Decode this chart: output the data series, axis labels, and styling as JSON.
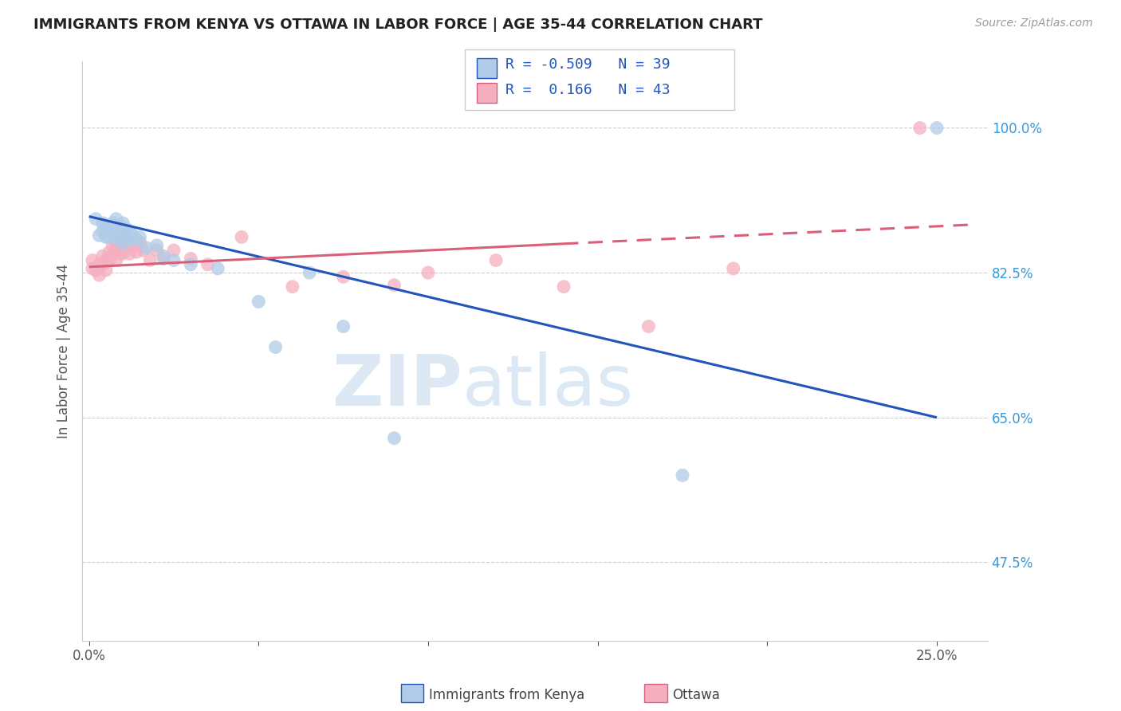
{
  "title": "IMMIGRANTS FROM KENYA VS OTTAWA IN LABOR FORCE | AGE 35-44 CORRELATION CHART",
  "source": "Source: ZipAtlas.com",
  "ylabel": "In Labor Force | Age 35-44",
  "y_tick_labels_right": [
    "100.0%",
    "82.5%",
    "65.0%",
    "47.5%"
  ],
  "y_tick_values_right": [
    1.0,
    0.825,
    0.65,
    0.475
  ],
  "xlim": [
    -0.002,
    0.265
  ],
  "ylim": [
    0.38,
    1.08
  ],
  "legend_r_kenya": "-0.509",
  "legend_n_kenya": "39",
  "legend_r_ottawa": " 0.166",
  "legend_n_ottawa": "43",
  "color_kenya": "#b0cce8",
  "color_ottawa": "#f5afc0",
  "line_color_kenya": "#2255bb",
  "line_color_ottawa": "#d9607a",
  "watermark_zip": "ZIP",
  "watermark_atlas": "atlas",
  "kenya_x": [
    0.002,
    0.003,
    0.004,
    0.004,
    0.005,
    0.005,
    0.006,
    0.006,
    0.007,
    0.007,
    0.008,
    0.008,
    0.008,
    0.009,
    0.009,
    0.009,
    0.01,
    0.01,
    0.01,
    0.011,
    0.011,
    0.012,
    0.012,
    0.013,
    0.014,
    0.015,
    0.017,
    0.02,
    0.022,
    0.025,
    0.03,
    0.038,
    0.05,
    0.055,
    0.065,
    0.075,
    0.09,
    0.175,
    0.25
  ],
  "kenya_y": [
    0.89,
    0.87,
    0.885,
    0.875,
    0.88,
    0.868,
    0.875,
    0.868,
    0.885,
    0.878,
    0.89,
    0.878,
    0.87,
    0.882,
    0.875,
    0.865,
    0.885,
    0.875,
    0.86,
    0.878,
    0.87,
    0.875,
    0.865,
    0.87,
    0.865,
    0.868,
    0.855,
    0.858,
    0.845,
    0.84,
    0.835,
    0.83,
    0.79,
    0.735,
    0.825,
    0.76,
    0.625,
    0.58,
    1.0
  ],
  "ottawa_x": [
    0.001,
    0.001,
    0.002,
    0.003,
    0.003,
    0.004,
    0.004,
    0.005,
    0.005,
    0.006,
    0.006,
    0.007,
    0.007,
    0.008,
    0.008,
    0.008,
    0.009,
    0.009,
    0.01,
    0.01,
    0.011,
    0.012,
    0.012,
    0.013,
    0.014,
    0.015,
    0.016,
    0.018,
    0.02,
    0.022,
    0.025,
    0.03,
    0.035,
    0.045,
    0.06,
    0.075,
    0.09,
    0.1,
    0.12,
    0.14,
    0.165,
    0.19,
    0.245
  ],
  "ottawa_y": [
    0.84,
    0.83,
    0.828,
    0.835,
    0.822,
    0.845,
    0.835,
    0.84,
    0.828,
    0.85,
    0.84,
    0.858,
    0.848,
    0.862,
    0.852,
    0.84,
    0.858,
    0.848,
    0.86,
    0.848,
    0.868,
    0.858,
    0.848,
    0.858,
    0.85,
    0.862,
    0.852,
    0.84,
    0.852,
    0.842,
    0.852,
    0.842,
    0.835,
    0.868,
    0.808,
    0.82,
    0.81,
    0.825,
    0.84,
    0.808,
    0.76,
    0.83,
    1.0
  ],
  "line_kenya_x0": 0.0,
  "line_kenya_x1": 0.25,
  "line_kenya_y0": 0.893,
  "line_kenya_y1": 0.65,
  "line_ottawa_x0": 0.0,
  "line_ottawa_x1": 0.25,
  "line_ottawa_y0": 0.832,
  "line_ottawa_y1": 0.88,
  "line_ottawa_dash_x0": 0.14,
  "line_ottawa_dash_x1": 0.26,
  "line_ottawa_dash_y0": 0.86,
  "line_ottawa_dash_y1": 0.883
}
